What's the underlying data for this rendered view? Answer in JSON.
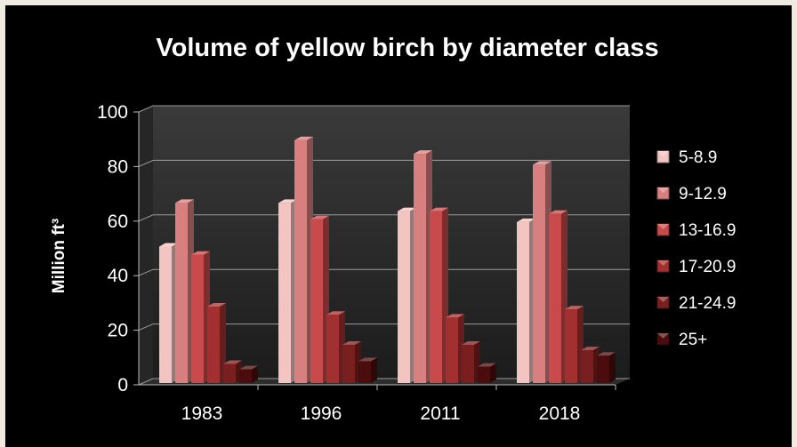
{
  "chart_data": {
    "type": "bar",
    "title": "Volume of yellow birch by diameter class",
    "xlabel": "",
    "ylabel": "Million ft³",
    "ylim": [
      0,
      100
    ],
    "yticks": [
      "0",
      "20",
      "40",
      "60",
      "80",
      "100"
    ],
    "categories": [
      "1983",
      "1996",
      "2011",
      "2018"
    ],
    "grid": true,
    "legend_position": "right",
    "series": [
      {
        "name": "5-8.9",
        "color": "#f2c4c2",
        "values": [
          50,
          66,
          63,
          59
        ]
      },
      {
        "name": "9-12.9",
        "color": "#d88080",
        "values": [
          66,
          89,
          84,
          80
        ]
      },
      {
        "name": "13-16.9",
        "color": "#c84a4a",
        "values": [
          47,
          60,
          63,
          62
        ]
      },
      {
        "name": "17-20.9",
        "color": "#a33030",
        "values": [
          28,
          25,
          24,
          27
        ]
      },
      {
        "name": "21-24.9",
        "color": "#7a1f1f",
        "values": [
          7,
          14,
          14,
          12
        ]
      },
      {
        "name": "25+",
        "color": "#4a0c0c",
        "values": [
          5,
          8,
          6,
          10
        ]
      }
    ]
  }
}
